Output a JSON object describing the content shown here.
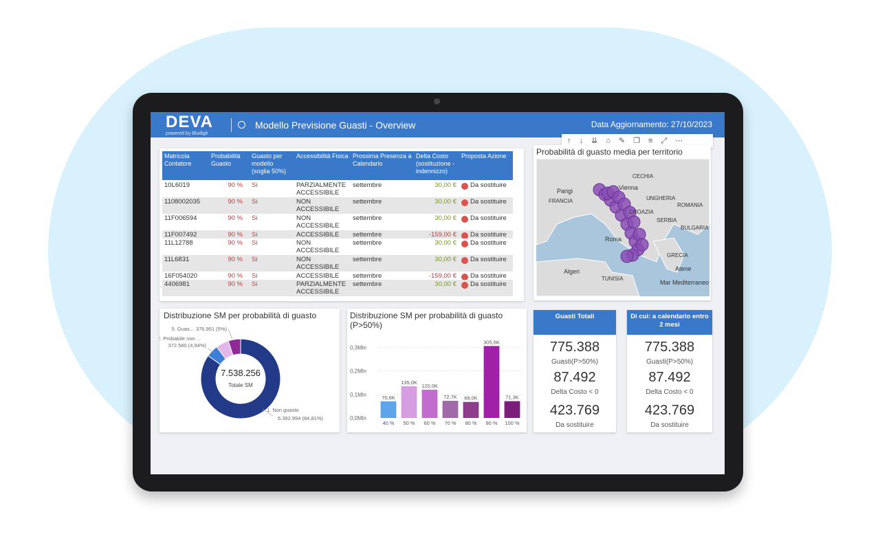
{
  "header": {
    "brand": "DEVA",
    "tagline": "powered by Bludigit",
    "title": "Modello Previsione Guasti - Overview",
    "updated": "Data Aggiornamento: 27/10/2023"
  },
  "table": {
    "columns": [
      "Matricola Contatore",
      "Probabilità Guasto",
      "Guasto per modello (soglia 50%)",
      "Accessibilità Fisica",
      "Prossima Presenza a Calendario",
      "Delta Costo (sostituzione - indennizzo)",
      "Proposta Azione"
    ],
    "rows": [
      [
        "10L6019",
        "90 %",
        "Si",
        "PARZIALMENTE ACCESSIBILE",
        "settembre",
        "30,00 €",
        "Da sostituire"
      ],
      [
        "1108002035",
        "90 %",
        "Si",
        "NON ACCESSIBILE",
        "settembre",
        "30,00 €",
        "Da sostituire"
      ],
      [
        "11F006594",
        "90 %",
        "Si",
        "NON ACCESSIBILE",
        "settembre",
        "30,00 €",
        "Da sostituire"
      ],
      [
        "11F007492",
        "90 %",
        "Si",
        "ACCESSIBILE",
        "settembre",
        "-159,00 €",
        "Da sostituire"
      ],
      [
        "11L12788",
        "90 %",
        "Si",
        "NON ACCESSIBILE",
        "settembre",
        "30,00 €",
        "Da sostituire"
      ],
      [
        "11L6831",
        "90 %",
        "Si",
        "NON ACCESSIBILE",
        "settembre",
        "30,00 €",
        "Da sostituire"
      ],
      [
        "16F054020",
        "90 %",
        "Si",
        "ACCESSIBILE",
        "settembre",
        "-159,00 €",
        "Da sostituire"
      ],
      [
        "4406981",
        "90 %",
        "Si",
        "PARZIALMENTE ACCESSIBILE",
        "settembre",
        "30,00 €",
        "Da sostituire"
      ]
    ]
  },
  "map": {
    "title": "Probabilità di guasto media per territorio",
    "labels": [
      "Parigi",
      "FRANCIA",
      "CECHIA",
      "Vienna",
      "UNGHERIA",
      "ROMANIA",
      "CROAZIA",
      "SERBIA",
      "BULGARIA",
      "Roma",
      "GRECIA",
      "Atene",
      "Algeri",
      "TUNISIA",
      "Mar Mediterraneo"
    ]
  },
  "donut_chart": {
    "type": "pie",
    "title": "Distribuzione SM per probabilità di guasto",
    "center_value": "7.538.256",
    "center_label": "Totale SM",
    "categories": [
      "1. Non guasto",
      "2. Probabile non ...",
      null,
      "5. Guas..."
    ],
    "values": [
      6392994,
      372580,
      395731,
      376951
    ],
    "value_labels": [
      "6.392.994 (84,81%)",
      "372.580 (4,94%)",
      null,
      "376.951 (5%)"
    ],
    "colors": [
      "#223a87",
      "#3d7fd8",
      "#e2b6e6",
      "#8e2a94"
    ]
  },
  "bar_chart": {
    "type": "bar",
    "title": "Distribuzione SM per probabilità di guasto (P>50%)",
    "categories": [
      "40 %",
      "50 %",
      "60 %",
      "70 %",
      "80 %",
      "90 %",
      "100 %"
    ],
    "values": [
      70600,
      135000,
      120000,
      72700,
      68000,
      305600,
      71300
    ],
    "value_labels": [
      "70,6K",
      "135,0K",
      "120,0K",
      "72,7K",
      "68,0K",
      "305,6K",
      "71,3K"
    ],
    "colors": [
      "#5da5e8",
      "#d69ee0",
      "#c36ccf",
      "#a06aa8",
      "#8c3d8c",
      "#a020a8",
      "#7a1e7a"
    ],
    "ylim": [
      0,
      330000
    ],
    "yticks": [
      {
        "value": 0,
        "label": "0,0Mln"
      },
      {
        "value": 100000,
        "label": "0,1Mln"
      },
      {
        "value": 200000,
        "label": "0,2Mln"
      },
      {
        "value": 300000,
        "label": "0,3Mln"
      }
    ]
  },
  "kpi_cards": [
    {
      "header": "Guasti Totali",
      "metrics": [
        {
          "value": "775.388",
          "label": "Guasti(P>50%)"
        },
        {
          "value": "87.492",
          "label": "Delta Costo < 0"
        },
        {
          "value": "423.769",
          "label": "Da sostituire"
        }
      ]
    },
    {
      "header": "Di cui: a calendario entro 2 mesi",
      "metrics": [
        {
          "value": "775.388",
          "label": "Guasti(P>50%)"
        },
        {
          "value": "87.492",
          "label": "Delta Costo < 0"
        },
        {
          "value": "423.769",
          "label": "Da sostituire"
        }
      ]
    }
  ]
}
